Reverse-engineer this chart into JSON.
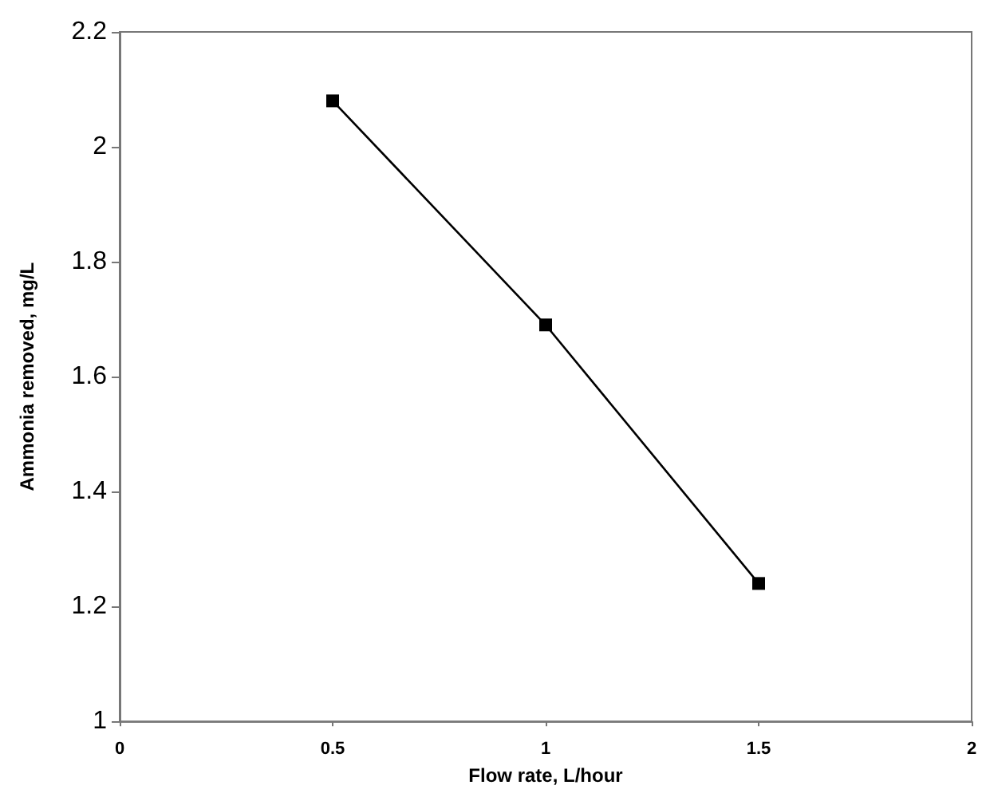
{
  "chart_data": {
    "type": "line",
    "xlabel": "Flow rate, L/hour",
    "ylabel": "Ammonia removed, mg/L",
    "x": [
      0.5,
      1,
      1.5
    ],
    "series": [
      {
        "color": "#000000",
        "values": [
          2.08,
          1.69,
          1.24
        ]
      }
    ],
    "xlim": [
      0,
      2
    ],
    "xticks": [
      0,
      0.5,
      1,
      1.5,
      2
    ],
    "ylim": [
      1,
      2.2
    ],
    "yticks": [
      1,
      1.2,
      1.4,
      1.6,
      1.8,
      2,
      2.2
    ],
    "grid": false,
    "marker": "square",
    "line_style": "solid"
  }
}
